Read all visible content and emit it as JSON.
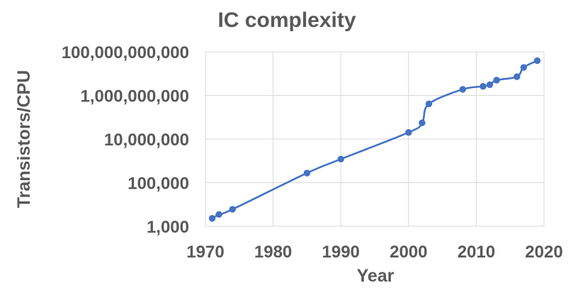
{
  "chart_data": {
    "type": "line",
    "title": "IC complexity",
    "xlabel": "Year",
    "ylabel": "Transistors/CPU",
    "x_scale": "linear",
    "y_scale": "log",
    "xlim": [
      1970,
      2020
    ],
    "ylim": [
      1000,
      100000000000
    ],
    "x_ticks": [
      1970,
      1980,
      1990,
      2000,
      2010,
      2020
    ],
    "x_tick_labels": [
      "1970",
      "1980",
      "1990",
      "2000",
      "2010",
      "2020"
    ],
    "y_ticks": [
      1000,
      100000,
      10000000,
      1000000000,
      100000000000
    ],
    "y_tick_labels": [
      "1,000",
      "100,000",
      "10,000,000",
      "1,000,000,000",
      "100,000,000,000"
    ],
    "grid": true,
    "legend": "none",
    "line_color": "#4472C4",
    "series": [
      {
        "x": [
          1971,
          1972,
          1974,
          1985,
          1990,
          2000,
          2002,
          2003,
          2008,
          2011,
          2012,
          2013,
          2016,
          2017,
          2019
        ],
        "y": [
          2300,
          3500,
          6000,
          275000,
          1200000,
          20000000,
          55000000,
          410000000,
          1900000000,
          2600000000,
          3100000000,
          5000000000,
          7200000000,
          19200000000,
          39000000000
        ]
      }
    ]
  }
}
